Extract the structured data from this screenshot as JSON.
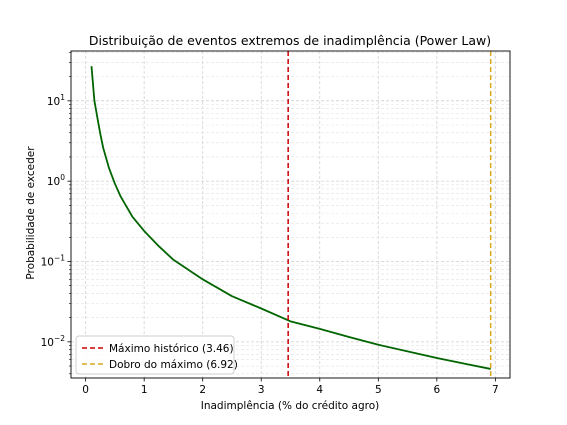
{
  "chart_data": {
    "type": "line",
    "title": "Distribuição de eventos extremos de inadimplência (Power Law)",
    "xlabel": "Inadimplência (% do crédito agro)",
    "ylabel": "Probabilidade de exceder",
    "xlim": [
      -0.25,
      7.25
    ],
    "ylim_log10": [
      -2.45,
      1.62
    ],
    "yscale": "log",
    "grid": true,
    "legend_position": "lower-left",
    "x_ticks": [
      0,
      1,
      2,
      3,
      4,
      5,
      6,
      7
    ],
    "x_tick_labels": [
      "0",
      "1",
      "2",
      "3",
      "4",
      "5",
      "6",
      "7"
    ],
    "y_ticks_log10": [
      1,
      0,
      -1,
      -2
    ],
    "y_tick_labels": [
      {
        "base": "10",
        "exp": "1"
      },
      {
        "base": "10",
        "exp": "0"
      },
      {
        "base": "10",
        "exp": "−1"
      },
      {
        "base": "10",
        "exp": "−2"
      }
    ],
    "series": [
      {
        "name": "",
        "color": "#006400",
        "style": "solid",
        "x": [
          0.1,
          0.15,
          0.2,
          0.25,
          0.3,
          0.4,
          0.5,
          0.6,
          0.8,
          1.0,
          1.25,
          1.5,
          2.0,
          2.5,
          3.0,
          3.5,
          4.0,
          4.5,
          5.0,
          5.5,
          6.0,
          6.5,
          6.92
        ],
        "y": [
          27,
          10,
          6.2,
          3.9,
          2.6,
          1.45,
          0.93,
          0.64,
          0.36,
          0.24,
          0.155,
          0.105,
          0.06,
          0.037,
          0.026,
          0.018,
          0.0145,
          0.0115,
          0.0092,
          0.0076,
          0.0063,
          0.0053,
          0.0046
        ]
      }
    ],
    "reference_lines": [
      {
        "name": "Máximo histórico (3.46)",
        "x": 3.46,
        "color": "#cc0000",
        "style": "dashed"
      },
      {
        "name": "Dobro do máximo (6.92)",
        "x": 6.92,
        "color": "#daa520",
        "style": "dashed"
      }
    ]
  }
}
